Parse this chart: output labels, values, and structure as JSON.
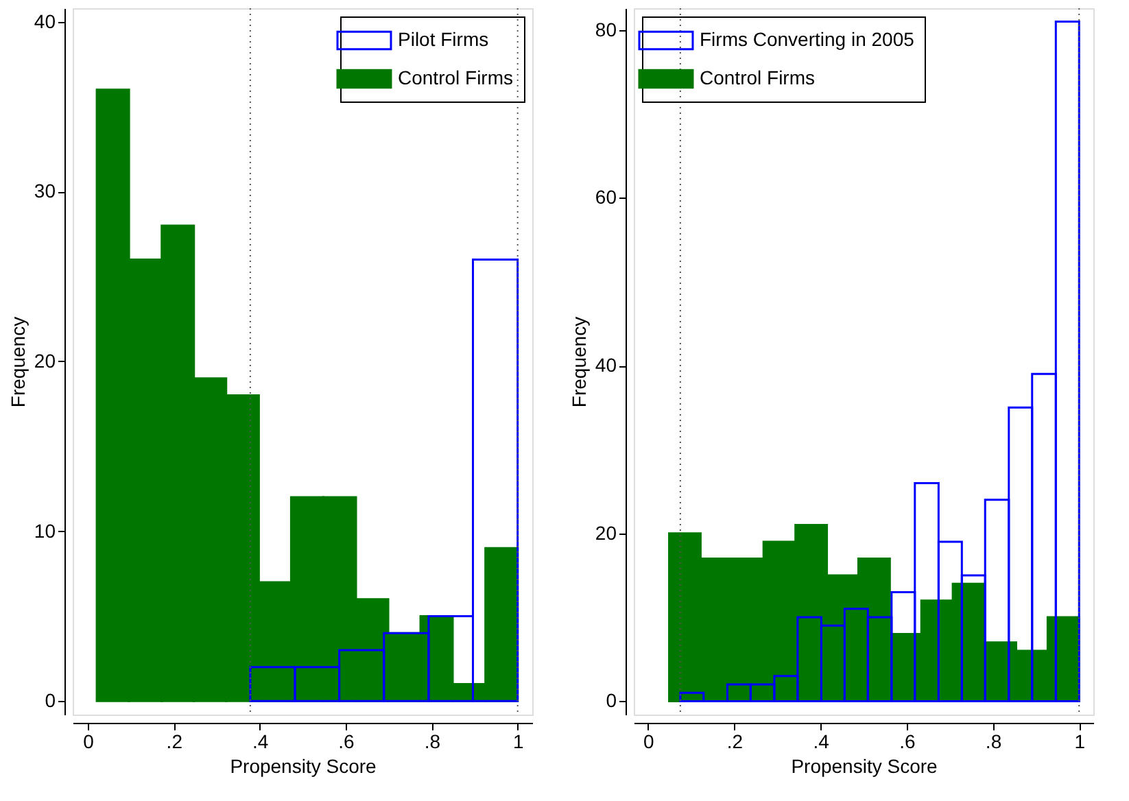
{
  "chart_data": [
    {
      "type": "histogram",
      "bins": [
        0.021,
        0.096,
        0.172,
        0.247,
        0.322,
        0.398,
        0.473,
        0.548,
        0.624,
        0.699,
        0.774,
        0.849,
        0.925,
        1.0
      ],
      "xlabel": "Propensity Score",
      "ylabel": "Frequency",
      "xlim": [
        -0.035,
        1.034
      ],
      "ylim": [
        -0.8,
        40.8
      ],
      "xticks": [
        {
          "value": 0,
          "label": "0"
        },
        {
          "value": 0.2,
          "label": ".2"
        },
        {
          "value": 0.4,
          "label": ".4"
        },
        {
          "value": 0.6,
          "label": ".6"
        },
        {
          "value": 0.8,
          "label": ".8"
        },
        {
          "value": 1,
          "label": "1"
        }
      ],
      "yticks": [
        0,
        10,
        20,
        30,
        40
      ],
      "legend": "top right",
      "grid": false,
      "series": [
        {
          "name": "Pilot Firms",
          "color": "#0000ff",
          "bins": [
            0.378,
            0.482,
            0.585,
            0.689,
            0.793,
            0.896,
            1.0
          ],
          "values": [
            2,
            2,
            3,
            4,
            5,
            26
          ]
        },
        {
          "name": "Control Firms",
          "color": "#007700",
          "values": [
            36,
            26,
            28,
            19,
            18,
            7,
            12,
            12,
            6,
            4,
            5,
            1,
            9
          ]
        }
      ],
      "ref_lines": [
        {
          "axis": "x",
          "value": 0.378,
          "color": "#555555",
          "line_style": "dotted"
        },
        {
          "axis": "x",
          "value": 1.0,
          "color": "#555555",
          "line_style": "dotted"
        }
      ]
    },
    {
      "type": "histogram",
      "bins": [
        0.049,
        0.122,
        0.195,
        0.268,
        0.342,
        0.415,
        0.488,
        0.561,
        0.634,
        0.707,
        0.78,
        0.854,
        0.927,
        1.0
      ],
      "xlabel": "Propensity Score",
      "ylabel": "Frequency",
      "xlim": [
        -0.033,
        1.033
      ],
      "ylim": [
        -1.6,
        82.6
      ],
      "xticks": [
        {
          "value": 0,
          "label": "0"
        },
        {
          "value": 0.2,
          "label": ".2"
        },
        {
          "value": 0.4,
          "label": ".4"
        },
        {
          "value": 0.6,
          "label": ".6"
        },
        {
          "value": 0.8,
          "label": ".8"
        },
        {
          "value": 1,
          "label": "1"
        }
      ],
      "yticks": [
        0,
        20,
        40,
        60,
        80
      ],
      "legend": "top left",
      "grid": false,
      "series": [
        {
          "name": "Firms Converting in 2005",
          "color": "#0000ff",
          "bins": [
            0.075,
            0.129,
            0.184,
            0.238,
            0.293,
            0.347,
            0.402,
            0.456,
            0.51,
            0.565,
            0.619,
            0.674,
            0.728,
            0.782,
            0.837,
            0.891,
            0.946,
            1.0
          ],
          "values": [
            1,
            0,
            2,
            2,
            3,
            10,
            9,
            11,
            10,
            13,
            26,
            19,
            15,
            24,
            35,
            39,
            81
          ]
        },
        {
          "name": "Control Firms",
          "color": "#007700",
          "values": [
            20,
            17,
            17,
            19,
            21,
            15,
            17,
            8,
            12,
            14,
            7,
            6,
            10
          ]
        }
      ],
      "ref_lines": [
        {
          "axis": "x",
          "value": 0.075,
          "color": "#555555",
          "line_style": "dotted"
        },
        {
          "axis": "x",
          "value": 1.0,
          "color": "#555555",
          "line_style": "dotted"
        }
      ]
    }
  ]
}
